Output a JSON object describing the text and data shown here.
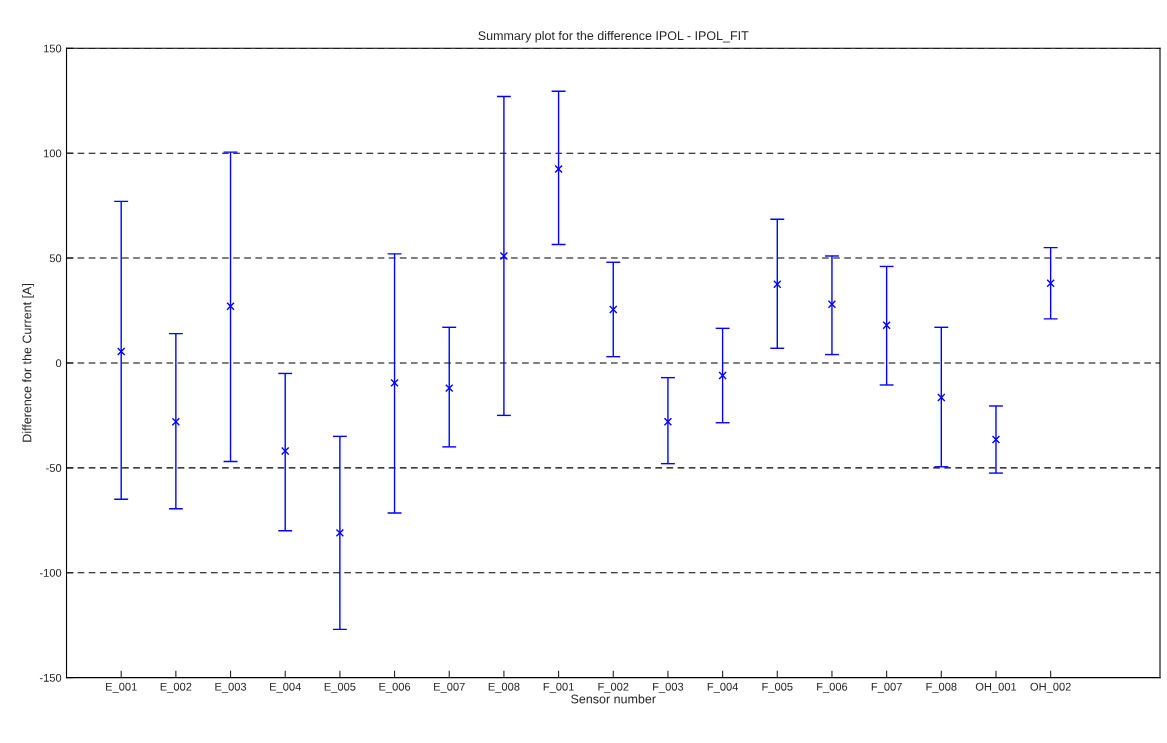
{
  "chart_data": {
    "type": "scatter",
    "title": "Summary plot for the difference IPOL - IPOL_FIT",
    "xlabel": "Sensor number",
    "ylabel": "Difference for the Current [A]",
    "categories": [
      "E_001",
      "E_002",
      "E_003",
      "E_004",
      "E_005",
      "E_006",
      "E_007",
      "E_008",
      "F_001",
      "F_002",
      "F_003",
      "F_004",
      "F_005",
      "F_006",
      "F_007",
      "F_008",
      "OH_001",
      "OH_002"
    ],
    "series": [
      {
        "color": "#0000ff",
        "marker": "cross",
        "values": [
          5.5,
          -28,
          27,
          -42,
          -81,
          -9.5,
          -12,
          51,
          92.5,
          25.5,
          -28,
          -6,
          37.5,
          28,
          18,
          -16.5,
          -36.5,
          38
        ],
        "errors": [
          [
            -65,
            77
          ],
          [
            -69.5,
            14
          ],
          [
            -47,
            100.5
          ],
          [
            -80,
            -5
          ],
          [
            -127,
            -35
          ],
          [
            -71.5,
            52
          ],
          [
            -40,
            17
          ],
          [
            -25,
            127
          ],
          [
            56.5,
            129.5
          ],
          [
            3,
            48
          ],
          [
            -48,
            -7
          ],
          [
            -28.5,
            16.5
          ],
          [
            7,
            68.5
          ],
          [
            4,
            51
          ],
          [
            -10.5,
            46
          ],
          [
            -49.5,
            17
          ],
          [
            -52.5,
            -20.5
          ],
          [
            21,
            55
          ]
        ]
      }
    ],
    "ylim": [
      -150,
      150
    ],
    "yticks": [
      -150,
      -100,
      -50,
      0,
      50,
      100,
      150
    ],
    "grid": "y",
    "line_style": "dashed"
  }
}
